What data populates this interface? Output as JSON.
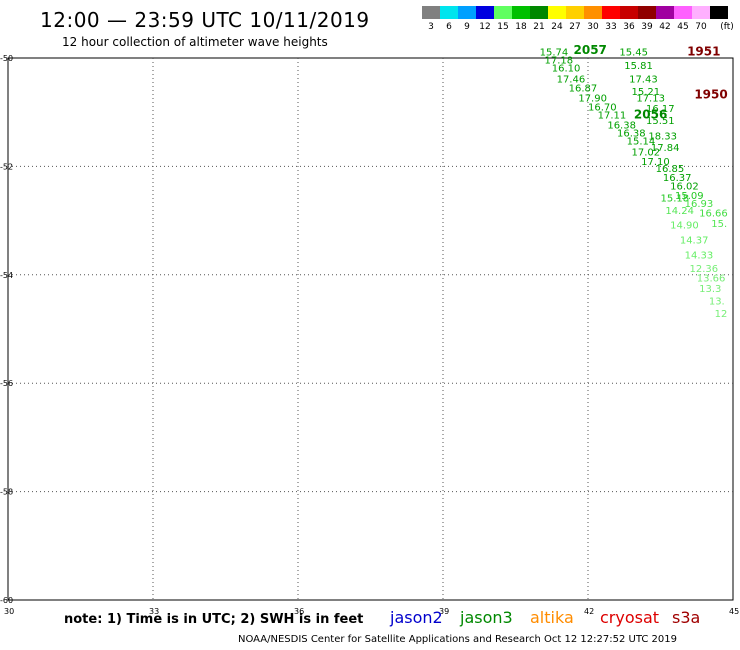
{
  "header": {
    "title": "12:00 — 23:59 UTC 10/11/2019",
    "subtitle": "12 hour collection of altimeter wave heights"
  },
  "legend": {
    "unit": "(ft)",
    "swatches": [
      {
        "color": "#808080",
        "label": "3"
      },
      {
        "color": "#00e5ee",
        "label": "6"
      },
      {
        "color": "#00a0ff",
        "label": "9"
      },
      {
        "color": "#0000e0",
        "label": "12"
      },
      {
        "color": "#60ff60",
        "label": "15"
      },
      {
        "color": "#00c000",
        "label": "18"
      },
      {
        "color": "#008800",
        "label": "21"
      },
      {
        "color": "#ffff00",
        "label": "24"
      },
      {
        "color": "#ffd000",
        "label": "27"
      },
      {
        "color": "#ff9000",
        "label": "30"
      },
      {
        "color": "#ff0000",
        "label": "33"
      },
      {
        "color": "#c80000",
        "label": "36"
      },
      {
        "color": "#900000",
        "label": "39"
      },
      {
        "color": "#a000a0",
        "label": "42"
      },
      {
        "color": "#ff60ff",
        "label": "45"
      },
      {
        "color": "#ffb0ff",
        "label": "70"
      },
      {
        "color": "#000000",
        "label": ""
      }
    ]
  },
  "map": {
    "lon_range": [
      30,
      45
    ],
    "lat_range": [
      -60,
      -50
    ],
    "lon_ticks": [
      30,
      33,
      36,
      39,
      42,
      45
    ],
    "lat_ticks": [
      -50,
      -52,
      -54,
      -56,
      -58,
      -60
    ],
    "grid": "dotted"
  },
  "observations": [
    {
      "text": "15.74",
      "lon": 41.0,
      "lat": -49.95,
      "color": "#00a000"
    },
    {
      "text": "17.18",
      "lon": 41.1,
      "lat": -50.1,
      "color": "#00a000"
    },
    {
      "text": "16.10",
      "lon": 41.25,
      "lat": -50.25,
      "color": "#00a000"
    },
    {
      "text": "17.46",
      "lon": 41.35,
      "lat": -50.45,
      "color": "#00a000"
    },
    {
      "text": "16.87",
      "lon": 41.6,
      "lat": -50.62,
      "color": "#00a000"
    },
    {
      "text": "17.90",
      "lon": 41.8,
      "lat": -50.8,
      "color": "#00a000"
    },
    {
      "text": "16.70",
      "lon": 42.0,
      "lat": -50.97,
      "color": "#00a000"
    },
    {
      "text": "17.11",
      "lon": 42.2,
      "lat": -51.12,
      "color": "#00a000"
    },
    {
      "text": "16.38",
      "lon": 42.4,
      "lat": -51.3,
      "color": "#00a000"
    },
    {
      "text": "15.45",
      "lon": 42.65,
      "lat": -49.95,
      "color": "#00a000"
    },
    {
      "text": "15.81",
      "lon": 42.75,
      "lat": -50.2,
      "color": "#00a000"
    },
    {
      "text": "17.43",
      "lon": 42.85,
      "lat": -50.45,
      "color": "#00a000"
    },
    {
      "text": "15.21",
      "lon": 42.9,
      "lat": -50.68,
      "color": "#00a000"
    },
    {
      "text": "17.13",
      "lon": 43.0,
      "lat": -50.8,
      "color": "#00a000"
    },
    {
      "text": "16.17",
      "lon": 43.2,
      "lat": -51.0,
      "color": "#00a000"
    },
    {
      "text": "15.51",
      "lon": 43.2,
      "lat": -51.22,
      "color": "#00a000"
    },
    {
      "text": "16.38",
      "lon": 42.6,
      "lat": -51.45,
      "color": "#00a000"
    },
    {
      "text": "18.33",
      "lon": 43.25,
      "lat": -51.5,
      "color": "#00a000"
    },
    {
      "text": "15.14",
      "lon": 42.8,
      "lat": -51.6,
      "color": "#00a000"
    },
    {
      "text": "17.84",
      "lon": 43.3,
      "lat": -51.72,
      "color": "#00a000"
    },
    {
      "text": "17.02",
      "lon": 42.9,
      "lat": -51.8,
      "color": "#00a000"
    },
    {
      "text": "17.10",
      "lon": 43.1,
      "lat": -51.97,
      "color": "#00a000"
    },
    {
      "text": "16.85",
      "lon": 43.4,
      "lat": -52.1,
      "color": "#00a000"
    },
    {
      "text": "16.37",
      "lon": 43.55,
      "lat": -52.27,
      "color": "#00a000"
    },
    {
      "text": "16.02",
      "lon": 43.7,
      "lat": -52.43,
      "color": "#00a000"
    },
    {
      "text": "15.09",
      "lon": 43.8,
      "lat": -52.6,
      "color": "#22c822"
    },
    {
      "text": "15.18",
      "lon": 43.5,
      "lat": -52.65,
      "color": "#22c822"
    },
    {
      "text": "16.93",
      "lon": 44.0,
      "lat": -52.75,
      "color": "#44dd44"
    },
    {
      "text": "14.24",
      "lon": 43.6,
      "lat": -52.88,
      "color": "#55e655"
    },
    {
      "text": "16.66",
      "lon": 44.3,
      "lat": -52.92,
      "color": "#44dd44"
    },
    {
      "text": "14.90",
      "lon": 43.7,
      "lat": -53.15,
      "color": "#66ee66"
    },
    {
      "text": "15.",
      "lon": 44.55,
      "lat": -53.12,
      "color": "#55e655"
    },
    {
      "text": "14.37",
      "lon": 43.9,
      "lat": -53.42,
      "color": "#66ee66"
    },
    {
      "text": "14.33",
      "lon": 44.0,
      "lat": -53.7,
      "color": "#66ee66"
    },
    {
      "text": "12.36",
      "lon": 44.1,
      "lat": -53.95,
      "color": "#77ee77"
    },
    {
      "text": "13.66",
      "lon": 44.25,
      "lat": -54.12,
      "color": "#77ee77"
    },
    {
      "text": "13.3",
      "lon": 44.3,
      "lat": -54.32,
      "color": "#77ee77"
    },
    {
      "text": "13.",
      "lon": 44.5,
      "lat": -54.55,
      "color": "#77ee77"
    },
    {
      "text": "12",
      "lon": 44.62,
      "lat": -54.78,
      "color": "#77ee77"
    }
  ],
  "track_labels": [
    {
      "text": "2057",
      "lon": 41.7,
      "lat": -49.93,
      "color": "#008800"
    },
    {
      "text": "2056",
      "lon": 42.95,
      "lat": -51.12,
      "color": "#008800"
    },
    {
      "text": "1951",
      "lon": 44.05,
      "lat": -49.95,
      "color": "#800000"
    },
    {
      "text": "1950",
      "lon": 44.2,
      "lat": -50.75,
      "color": "#800000"
    }
  ],
  "note": "note:  1) Time is in UTC;  2) SWH is in feet",
  "satellites": [
    {
      "name": "jason2",
      "color": "#0000cc"
    },
    {
      "name": "jason3",
      "color": "#008800"
    },
    {
      "name": "altika",
      "color": "#ff8c00"
    },
    {
      "name": "cryosat",
      "color": "#dd0000"
    },
    {
      "name": "s3a",
      "color": "#a00000"
    }
  ],
  "footer": "NOAA/NESDIS Center for Satellite Applications and Research     Oct 12 12:27:52 UTC 2019"
}
